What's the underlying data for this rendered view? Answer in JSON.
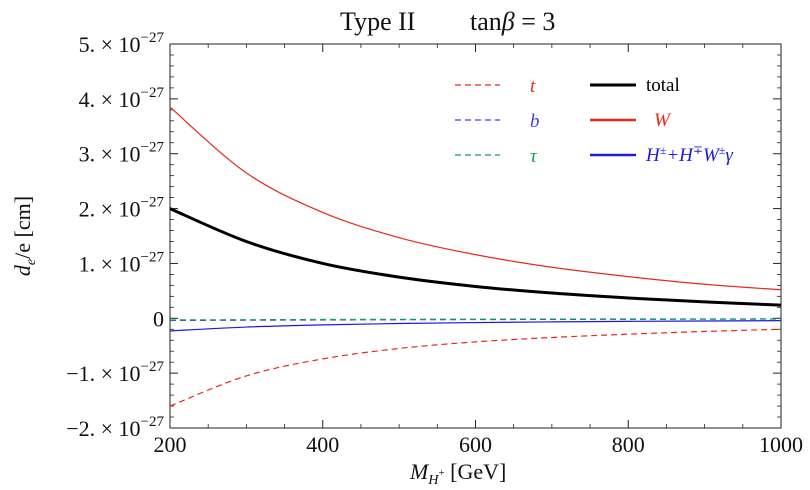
{
  "chart_data": {
    "type": "line",
    "title": "Type II",
    "subtitle": "tanβ = 3",
    "xlabel": "M_{H⁺} [GeV]",
    "ylabel": "d_e/e [cm]",
    "xlim": [
      200,
      1000
    ],
    "ylim": [
      -2e-27,
      5e-27
    ],
    "x_ticks": [
      200,
      400,
      600,
      800,
      1000
    ],
    "y_ticks": [
      {
        "value": 5e-27,
        "mant": "5.",
        "exp": "−27"
      },
      {
        "value": 4e-27,
        "mant": "4.",
        "exp": "−27"
      },
      {
        "value": 3e-27,
        "mant": "3.",
        "exp": "−27"
      },
      {
        "value": 2e-27,
        "mant": "2.",
        "exp": "−27"
      },
      {
        "value": 1e-27,
        "mant": "1.",
        "exp": "−27"
      },
      {
        "value": 0,
        "mant": "0",
        "exp": ""
      },
      {
        "value": -1e-27,
        "mant": "−1.",
        "exp": "−27"
      },
      {
        "value": -2e-27,
        "mant": "−2.",
        "exp": "−27"
      }
    ],
    "grid": false,
    "legend_position": "top-right",
    "x": [
      200,
      300,
      400,
      500,
      600,
      700,
      800,
      900,
      1000
    ],
    "series": [
      {
        "name": "t",
        "color": "#e8281e",
        "dash": "dashed",
        "width": 1.2,
        "values": [
          -1.6e-27,
          -1.05e-27,
          -7.4e-28,
          -5.5e-28,
          -4.3e-28,
          -3.5e-28,
          -2.9e-28,
          -2.4e-28,
          -2e-28
        ]
      },
      {
        "name": "b",
        "color": "#3c3cf0",
        "dash": "dashed",
        "width": 1.2,
        "values": [
          -4e-29,
          -3.5e-29,
          -3e-29,
          -2.6e-29,
          -2.3e-29,
          -2e-29,
          -1.8e-29,
          -1.6e-29,
          -1.4e-29
        ]
      },
      {
        "name": "τ",
        "color": "#10a050",
        "dash": "dashed",
        "width": 1.2,
        "values": [
          -3e-29,
          -2.6e-29,
          -2.2e-29,
          -1.9e-29,
          -1.7e-29,
          -1.5e-29,
          -1.3e-29,
          -1.2e-29,
          -1.1e-29
        ]
      },
      {
        "name": "total",
        "color": "#000000",
        "dash": "solid",
        "width": 3,
        "values": [
          2e-27,
          1.4e-27,
          1e-27,
          7.5e-28,
          5.8e-28,
          4.6e-28,
          3.7e-28,
          3e-28,
          2.4e-28
        ]
      },
      {
        "name": "W",
        "color": "#e8281e",
        "dash": "solid",
        "width": 1.2,
        "values": [
          3.85e-27,
          2.65e-27,
          1.93e-27,
          1.47e-27,
          1.16e-27,
          9.3e-28,
          7.6e-28,
          6.2e-28,
          5.2e-28
        ]
      },
      {
        "name": "H^{±}+H^{∓}W^{±}γ",
        "color": "#1a1ae0",
        "dash": "solid",
        "width": 1.2,
        "values": [
          -2.3e-28,
          -1.6e-28,
          -1.2e-28,
          -9.5e-29,
          -7.8e-29,
          -6.6e-29,
          -5.6e-29,
          -4.9e-29,
          -4.3e-29
        ]
      }
    ]
  }
}
